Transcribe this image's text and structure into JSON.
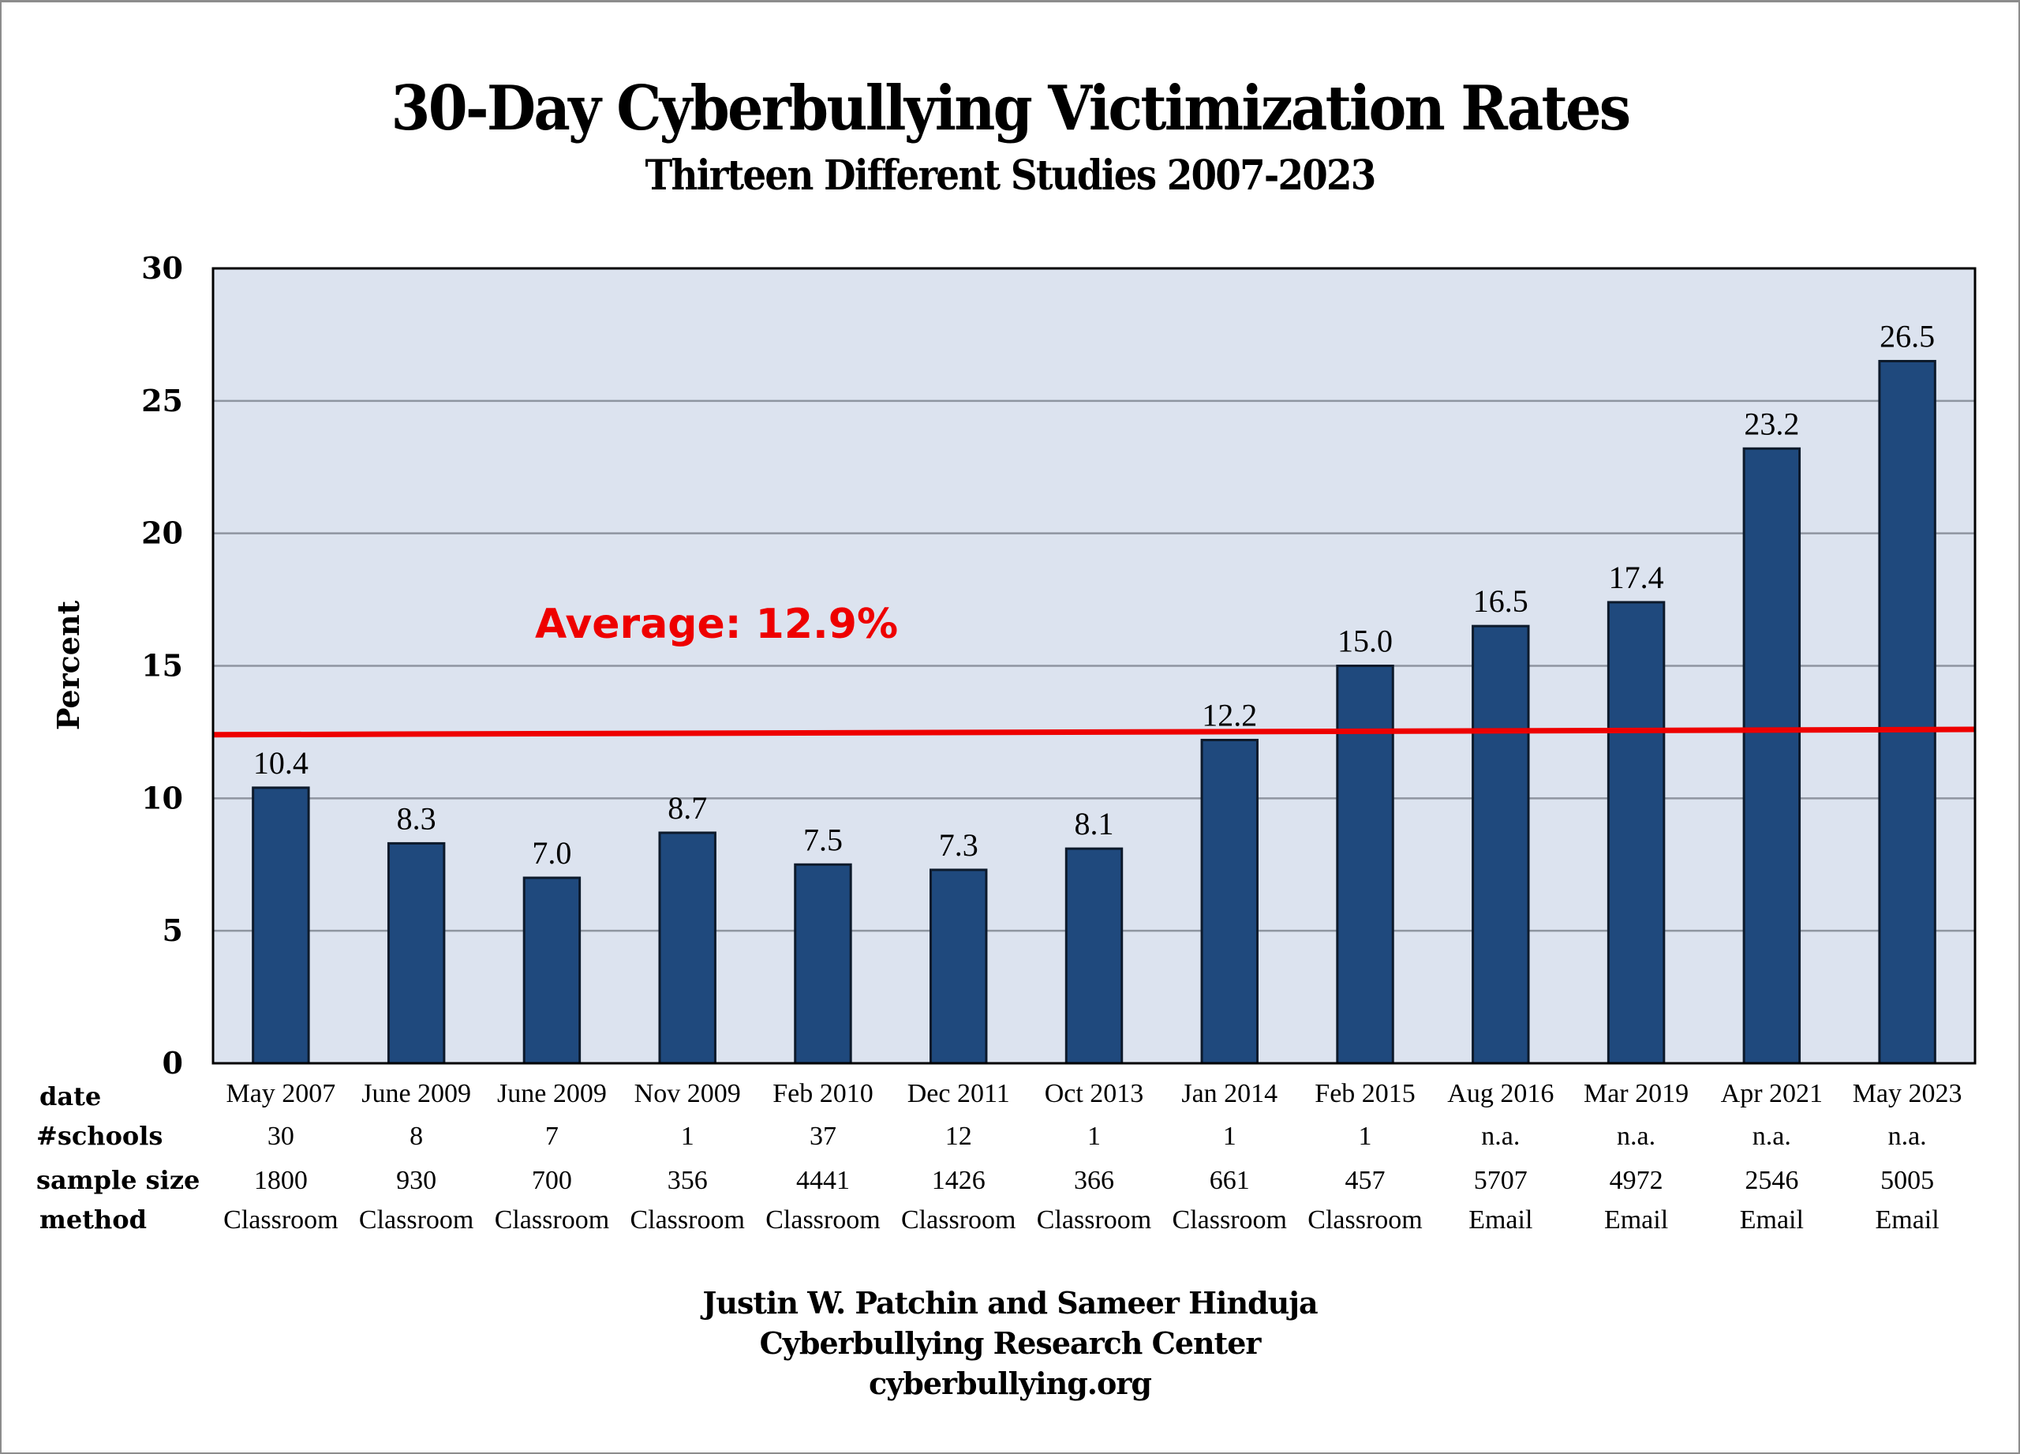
{
  "chart_data": {
    "type": "bar",
    "title": "30-Day Cyberbullying Victimization Rates",
    "subtitle": "Thirteen Different Studies 2007-2023",
    "xlabel": "",
    "ylabel": "Percent",
    "ylim": [
      0,
      30
    ],
    "yticks": [
      0,
      5,
      10,
      15,
      20,
      25,
      30
    ],
    "grid": true,
    "categories": [
      "May 2007",
      "June 2009",
      "June 2009",
      "Nov 2009",
      "Feb 2010",
      "Dec 2011",
      "Oct 2013",
      "Jan 2014",
      "Feb 2015",
      "Aug 2016",
      "Mar 2019",
      "Apr 2021",
      "May 2023"
    ],
    "values": [
      10.4,
      8.3,
      7.0,
      8.7,
      7.5,
      7.3,
      8.1,
      12.2,
      15.0,
      16.5,
      17.4,
      23.2,
      26.5
    ],
    "value_labels": [
      "10.4",
      "8.3",
      "7.0",
      "8.7",
      "7.5",
      "7.3",
      "8.1",
      "12.2",
      "15.0",
      "16.5",
      "17.4",
      "23.2",
      "26.5"
    ],
    "average": {
      "label": "Average: 12.9%",
      "value": 12.9,
      "line_start_value": 12.4,
      "line_end_value": 12.6
    },
    "colors": {
      "bar": "#1f497d",
      "bar_edge": "#0d1a2b",
      "plot_bg": "#dce3ef",
      "grid": "#8e95a0",
      "average_line": "#ee0000"
    },
    "table": {
      "row_headers": [
        "date",
        "#schools",
        "sample size",
        "method"
      ],
      "schools": [
        "30",
        "8",
        "7",
        "1",
        "37",
        "12",
        "1",
        "1",
        "1",
        "n.a.",
        "n.a.",
        "n.a.",
        "n.a."
      ],
      "sample_size": [
        "1800",
        "930",
        "700",
        "356",
        "4441",
        "1426",
        "366",
        "661",
        "457",
        "5707",
        "4972",
        "2546",
        "5005"
      ],
      "method": [
        "Classroom",
        "Classroom",
        "Classroom",
        "Classroom",
        "Classroom",
        "Classroom",
        "Classroom",
        "Classroom",
        "Classroom",
        "Email",
        "Email",
        "Email",
        "Email"
      ]
    }
  },
  "footer": {
    "authors": "Justin W. Patchin and Sameer Hinduja",
    "organization": "Cyberbullying Research Center",
    "website": "cyberbullying.org"
  }
}
